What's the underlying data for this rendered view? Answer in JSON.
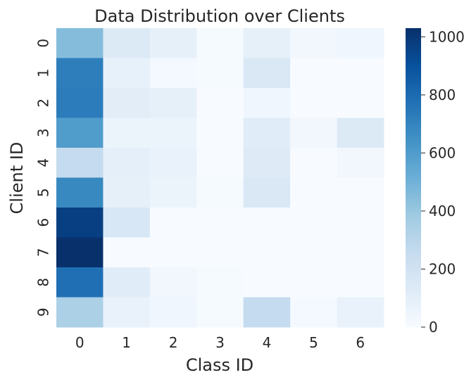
{
  "chart_data": {
    "type": "heatmap",
    "title": "Data Distribution over Clients",
    "xlabel": "Class ID",
    "ylabel": "Client ID",
    "x_categories": [
      "0",
      "1",
      "2",
      "3",
      "4",
      "5",
      "6"
    ],
    "y_categories": [
      "0",
      "1",
      "2",
      "3",
      "4",
      "5",
      "6",
      "7",
      "8",
      "9"
    ],
    "values": [
      [
        450,
        140,
        90,
        10,
        90,
        30,
        40
      ],
      [
        720,
        80,
        20,
        10,
        150,
        0,
        0
      ],
      [
        730,
        110,
        90,
        0,
        40,
        0,
        0
      ],
      [
        600,
        60,
        60,
        0,
        120,
        30,
        140
      ],
      [
        260,
        100,
        70,
        0,
        130,
        0,
        30
      ],
      [
        680,
        90,
        60,
        10,
        150,
        0,
        0
      ],
      [
        970,
        160,
        0,
        0,
        0,
        0,
        0
      ],
      [
        1030,
        0,
        0,
        0,
        0,
        0,
        0
      ],
      [
        780,
        120,
        30,
        10,
        0,
        0,
        0
      ],
      [
        340,
        70,
        40,
        10,
        260,
        20,
        70
      ]
    ],
    "colorbar": {
      "min": 0,
      "max": 1030,
      "ticks": [
        0,
        200,
        400,
        600,
        800,
        1000
      ],
      "colormap": "Blues"
    },
    "grid": false
  }
}
